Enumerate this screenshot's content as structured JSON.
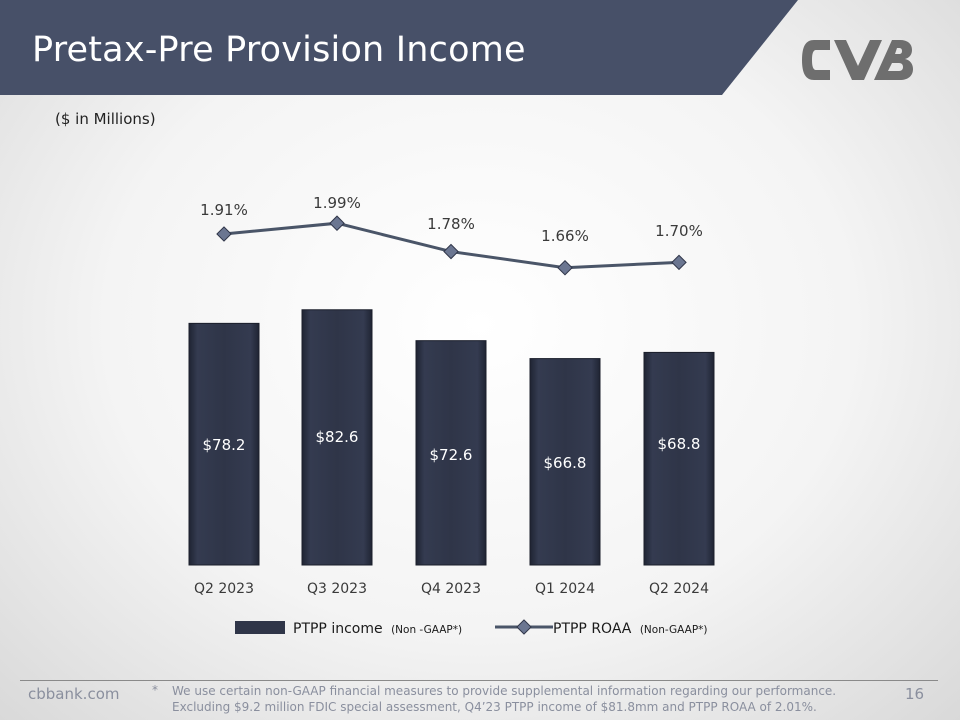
{
  "slide": {
    "title": "Pretax-Pre Provision Income",
    "units_note": "($ in Millions)",
    "header_color": "#475068",
    "bar_color": "#2f3548",
    "line_color": "#4a5568"
  },
  "chart_data": {
    "type": "bar",
    "categories": [
      "Q2 2023",
      "Q3 2023",
      "Q4 2023",
      "Q1 2024",
      "Q2 2024"
    ],
    "series": [
      {
        "name": "PTPP income (Non -GAAP*)",
        "legend_main": "PTPP income",
        "legend_qualifier": "(Non -GAAP*)",
        "type": "bar",
        "values": [
          78.2,
          82.6,
          72.6,
          66.8,
          68.8
        ],
        "labels": [
          "$78.2",
          "$82.6",
          "$72.6",
          "$66.8",
          "$68.8"
        ]
      },
      {
        "name": "PTPP ROAA (Non-GAAP*)",
        "legend_main": "PTPP ROAA",
        "legend_qualifier": "(Non-GAAP*)",
        "type": "line",
        "values": [
          1.91,
          1.99,
          1.78,
          1.66,
          1.7
        ],
        "labels": [
          "1.91%",
          "1.99%",
          "1.78%",
          "1.66%",
          "1.70%"
        ]
      }
    ],
    "legend_position": "bottom",
    "grid": false
  },
  "footer": {
    "site": "cbbank.com",
    "star": "*",
    "footnote": "We use certain non-GAAP financial measures to provide supplemental information regarding our performance. Excluding $9.2 million FDIC special assessment, Q4’23 PTPP income of $81.8mm and PTPP ROAA of 2.01%.",
    "page_number": "16"
  }
}
